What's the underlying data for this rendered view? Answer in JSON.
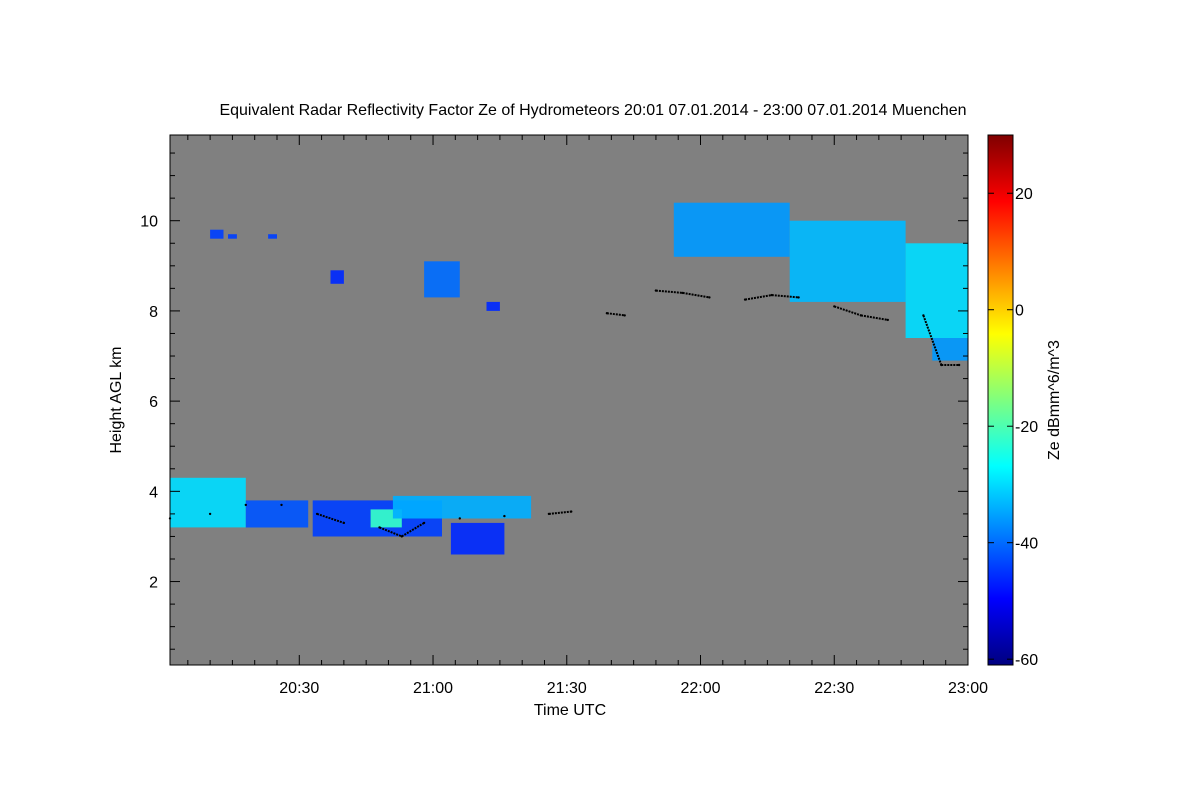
{
  "chart_data": {
    "type": "heatmap",
    "title": "Equivalent Radar Reflectivity Factor Ze of Hydrometeors   20:01 07.01.2014 - 23:00 07.01.2014 Muenchen",
    "xlabel": "Time UTC",
    "ylabel": "Height AGL km",
    "x_ticks": [
      "20:30",
      "21:00",
      "21:30",
      "22:00",
      "22:30",
      "23:00"
    ],
    "y_ticks": [
      "2",
      "4",
      "6",
      "8",
      "10"
    ],
    "xlim_minutes_utc": [
      1201,
      1380
    ],
    "ylim_km": [
      0.15,
      11.9
    ],
    "colorbar": {
      "label": "Ze dBmm^6/m^3",
      "range": [
        -61,
        30
      ],
      "ticks": [
        "20",
        "0",
        "-20",
        "-40",
        "-60"
      ],
      "colormap": "jet"
    },
    "background_color": "#808080",
    "echoes": [
      {
        "t0": 1201,
        "t1": 1218,
        "h0": 3.2,
        "h1": 4.3,
        "ze": -30
      },
      {
        "t0": 1218,
        "t1": 1232,
        "h0": 3.2,
        "h1": 3.8,
        "ze": -42
      },
      {
        "t0": 1233,
        "t1": 1262,
        "h0": 3.0,
        "h1": 3.8,
        "ze": -44
      },
      {
        "t0": 1246,
        "t1": 1253,
        "h0": 3.2,
        "h1": 3.6,
        "ze": -22
      },
      {
        "t0": 1251,
        "t1": 1282,
        "h0": 3.4,
        "h1": 3.9,
        "ze": -34
      },
      {
        "t0": 1264,
        "t1": 1276,
        "h0": 2.6,
        "h1": 3.3,
        "ze": -46
      },
      {
        "t0": 1210,
        "t1": 1213,
        "h0": 9.6,
        "h1": 9.8,
        "ze": -44
      },
      {
        "t0": 1214,
        "t1": 1216,
        "h0": 9.6,
        "h1": 9.7,
        "ze": -44
      },
      {
        "t0": 1223,
        "t1": 1225,
        "h0": 9.6,
        "h1": 9.7,
        "ze": -44
      },
      {
        "t0": 1237,
        "t1": 1240,
        "h0": 8.6,
        "h1": 8.9,
        "ze": -46
      },
      {
        "t0": 1258,
        "t1": 1266,
        "h0": 8.3,
        "h1": 9.1,
        "ze": -40
      },
      {
        "t0": 1272,
        "t1": 1275,
        "h0": 8.0,
        "h1": 8.2,
        "ze": -46
      },
      {
        "t0": 1314,
        "t1": 1340,
        "h0": 9.2,
        "h1": 10.4,
        "ze": -36
      },
      {
        "t0": 1340,
        "t1": 1366,
        "h0": 8.2,
        "h1": 10.0,
        "ze": -33
      },
      {
        "t0": 1366,
        "t1": 1380,
        "h0": 7.4,
        "h1": 9.5,
        "ze": -30
      },
      {
        "t0": 1372,
        "t1": 1380,
        "h0": 6.9,
        "h1": 7.4,
        "ze": -36
      }
    ],
    "cloud_base": [
      {
        "t": 1201,
        "h": 3.4
      },
      {
        "t": 1210,
        "h": 3.5
      },
      {
        "t": 1218,
        "h": 3.7
      },
      {
        "t": 1226,
        "h": 3.7
      },
      {
        "t": 1234,
        "h": 3.5
      },
      {
        "t": 1240,
        "h": 3.3
      },
      {
        "t": 1248,
        "h": 3.2
      },
      {
        "t": 1253,
        "h": 3.0
      },
      {
        "t": 1258,
        "h": 3.3
      },
      {
        "t": 1266,
        "h": 3.4
      },
      {
        "t": 1276,
        "h": 3.45
      },
      {
        "t": 1286,
        "h": 3.5
      },
      {
        "t": 1291,
        "h": 3.55
      },
      {
        "t": 1299,
        "h": 7.95
      },
      {
        "t": 1303,
        "h": 7.9
      },
      {
        "t": 1310,
        "h": 8.45
      },
      {
        "t": 1316,
        "h": 8.4
      },
      {
        "t": 1322,
        "h": 8.3
      },
      {
        "t": 1330,
        "h": 8.25
      },
      {
        "t": 1336,
        "h": 8.35
      },
      {
        "t": 1342,
        "h": 8.3
      },
      {
        "t": 1350,
        "h": 8.1
      },
      {
        "t": 1356,
        "h": 7.9
      },
      {
        "t": 1362,
        "h": 7.8
      },
      {
        "t": 1370,
        "h": 7.9
      },
      {
        "t": 1374,
        "h": 6.8
      },
      {
        "t": 1378,
        "h": 6.8
      }
    ]
  }
}
